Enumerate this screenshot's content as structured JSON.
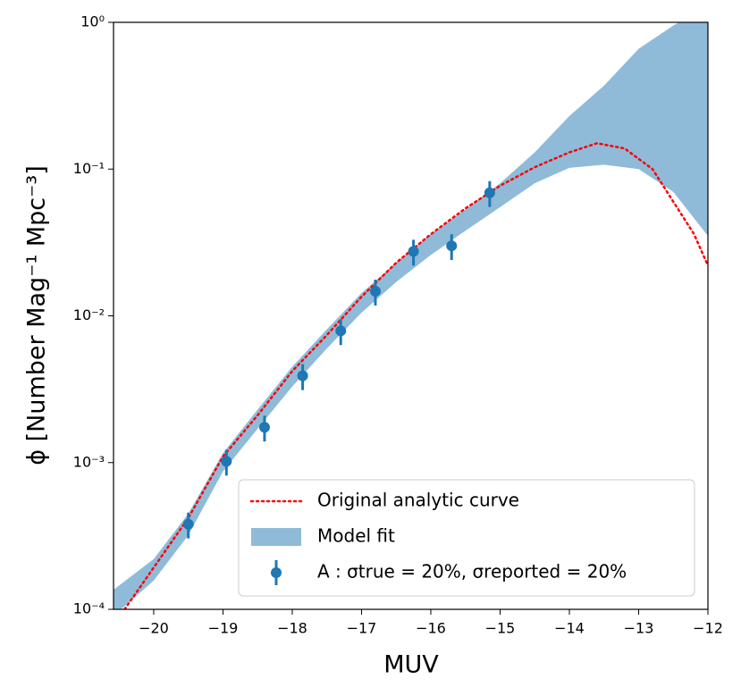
{
  "chart_data": {
    "type": "line",
    "x_label": "MUV",
    "y_label": "ϕ [Number Mag⁻¹ Mpc⁻³]",
    "log_y": true,
    "xlim": [
      -20.58,
      -12
    ],
    "ylim": [
      0.0001,
      1
    ],
    "xticks": [
      {
        "value": -20,
        "label": "−20"
      },
      {
        "value": -19,
        "label": "−19"
      },
      {
        "value": -18,
        "label": "−18"
      },
      {
        "value": -17,
        "label": "−17"
      },
      {
        "value": -16,
        "label": "−16"
      },
      {
        "value": -15,
        "label": "−15"
      },
      {
        "value": -14,
        "label": "−14"
      },
      {
        "value": -13,
        "label": "−13"
      },
      {
        "value": -12,
        "label": "−12"
      }
    ],
    "yticks": [
      {
        "value": 0.0001,
        "label": "10⁻⁴"
      },
      {
        "value": 0.001,
        "label": "10⁻³"
      },
      {
        "value": 0.01,
        "label": "10⁻²"
      },
      {
        "value": 0.1,
        "label": "10⁻¹"
      },
      {
        "value": 1,
        "label": "10⁰"
      }
    ],
    "legend": "lower right",
    "series": [
      {
        "name": "Original analytic curve",
        "type": "line",
        "color": "#ff0000",
        "x": [
          -20.42,
          -19.5,
          -19,
          -18.5,
          -18,
          -17.5,
          -17,
          -16.5,
          -16,
          -15.5,
          -15,
          -14.5,
          -14,
          -13.6,
          -13.2,
          -12.8,
          -12.5,
          -12.2,
          -12
        ],
        "values": [
          0.0001,
          0.00042,
          0.0011,
          0.0021,
          0.0042,
          0.0074,
          0.0135,
          0.023,
          0.036,
          0.054,
          0.077,
          0.103,
          0.13,
          0.15,
          0.138,
          0.1,
          0.06,
          0.036,
          0.022
        ]
      },
      {
        "name": "Model fit",
        "type": "band",
        "color": "#8fbbd9",
        "x": [
          -20.58,
          -20,
          -19.5,
          -19,
          -18.5,
          -18,
          -17.5,
          -17,
          -16.5,
          -16,
          -15.5,
          -15,
          -14.5,
          -14,
          -13.5,
          -13,
          -12.5,
          -12
        ],
        "upper": [
          0.000136,
          0.00022,
          0.00045,
          0.00116,
          0.0023,
          0.0045,
          0.0081,
          0.0143,
          0.023,
          0.036,
          0.053,
          0.08,
          0.13,
          0.23,
          0.37,
          0.66,
          0.95,
          1.3
        ],
        "lower": [
          9e-05,
          0.000157,
          0.00032,
          0.00087,
          0.0017,
          0.0033,
          0.006,
          0.0105,
          0.017,
          0.026,
          0.038,
          0.055,
          0.08,
          0.102,
          0.107,
          0.1,
          0.07,
          0.035
        ]
      },
      {
        "name": "A :  σtrue = 20%,  σreported = 20%",
        "type": "errorbar",
        "color": "#1f77b4",
        "x": [
          -19.5,
          -18.95,
          -18.4,
          -17.85,
          -17.3,
          -16.8,
          -16.25,
          -15.7,
          -15.15
        ],
        "values": [
          0.00038,
          0.00102,
          0.00174,
          0.0039,
          0.0079,
          0.0147,
          0.0275,
          0.03,
          0.069
        ],
        "errors": [
          7.6e-05,
          0.000204,
          0.000348,
          0.00078,
          0.00158,
          0.00294,
          0.0055,
          0.006,
          0.0138
        ]
      }
    ]
  }
}
